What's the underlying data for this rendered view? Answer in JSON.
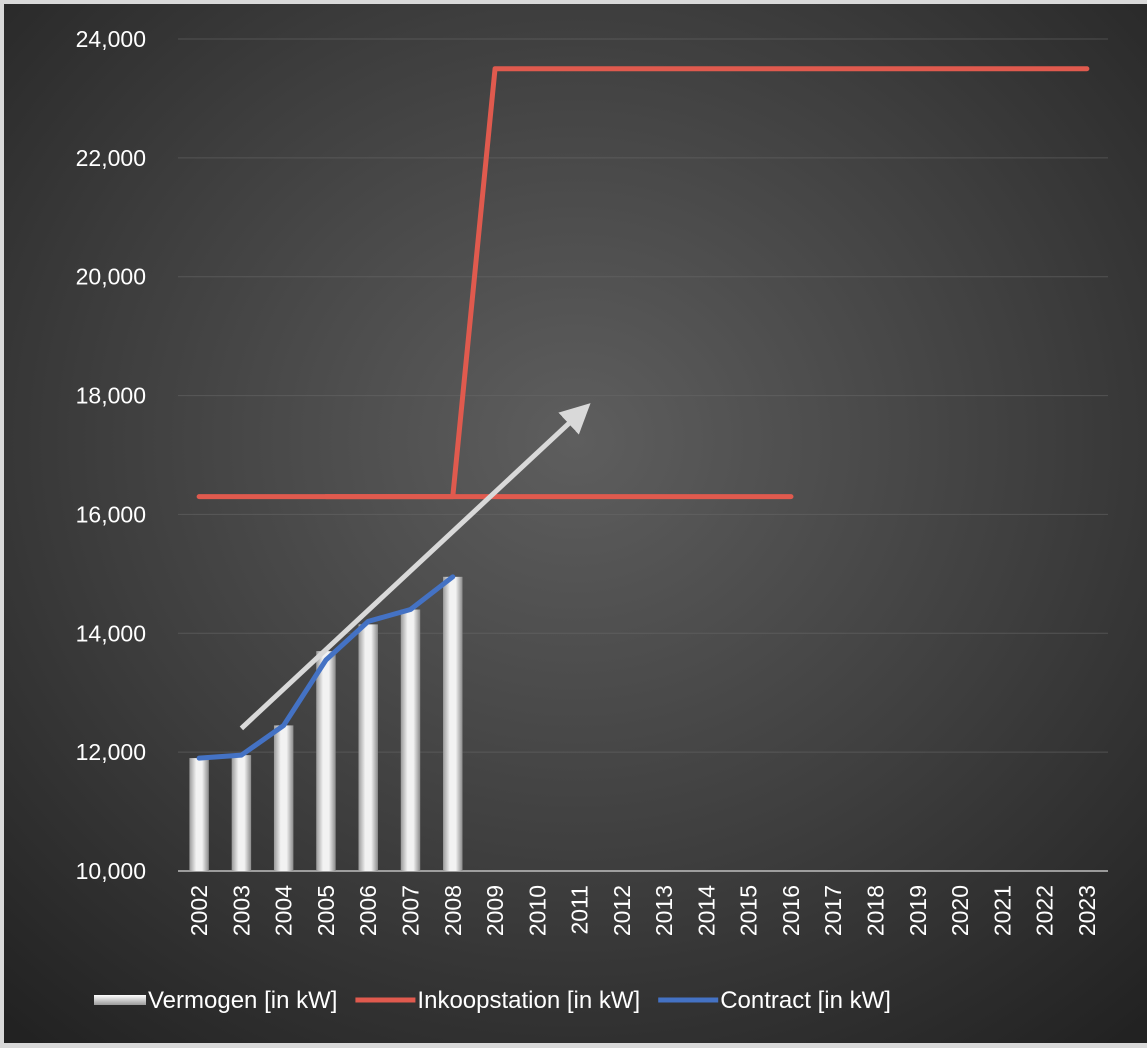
{
  "chart_data": {
    "type": "bar",
    "title": "",
    "xlabel": "",
    "ylabel": "",
    "categories": [
      "2002",
      "2003",
      "2004",
      "2005",
      "2006",
      "2007",
      "2008",
      "2009",
      "2010",
      "2011",
      "2012",
      "2013",
      "2014",
      "2015",
      "2016",
      "2017",
      "2018",
      "2019",
      "2020",
      "2021",
      "2022",
      "2023"
    ],
    "ylim": [
      10000,
      24000
    ],
    "yticks": [
      10000,
      12000,
      14000,
      16000,
      18000,
      20000,
      22000,
      24000
    ],
    "ytick_labels": [
      "10,000",
      "12,000",
      "14,000",
      "16,000",
      "18,000",
      "20,000",
      "22,000",
      "24,000"
    ],
    "grid": true,
    "legend_position": "bottom",
    "series": [
      {
        "name": "Vermogen [in kW]",
        "type": "bar",
        "color": "#e6e6e6",
        "values": [
          11900,
          11950,
          12450,
          13700,
          14150,
          14400,
          14950,
          null,
          null,
          null,
          null,
          null,
          null,
          null,
          null,
          null,
          null,
          null,
          null,
          null,
          null,
          null
        ]
      },
      {
        "name": "Inkoopstation [in kW]",
        "type": "line",
        "color": "#e05a4e",
        "values": [
          16300,
          16300,
          16300,
          16300,
          16300,
          16300,
          16300,
          23500,
          23500,
          23500,
          23500,
          23500,
          23500,
          23500,
          23500,
          23500,
          23500,
          23500,
          23500,
          23500,
          23500,
          23500
        ]
      },
      {
        "name": "Inkoopstation [in kW]",
        "type": "line",
        "color": "#e05a4e",
        "values": [
          null,
          null,
          null,
          16300,
          16300,
          16300,
          16300,
          16300,
          16300,
          16300,
          16300,
          16300,
          16300,
          16300,
          16300,
          null,
          null,
          null,
          null,
          null,
          null,
          null
        ]
      },
      {
        "name": "Contract [in kW]",
        "type": "line",
        "color": "#4472c4",
        "values": [
          11900,
          11950,
          12450,
          13550,
          14200,
          14400,
          14950,
          null,
          null,
          null,
          null,
          null,
          null,
          null,
          null,
          null,
          null,
          null,
          null,
          null,
          null,
          null
        ]
      }
    ],
    "annotations": [
      {
        "type": "trend-arrow",
        "color": "#d9d9d9",
        "from": [
          "2003",
          12400
        ],
        "to": [
          "2011",
          17700
        ]
      }
    ],
    "legend": [
      {
        "label": "Vermogen [in kW]",
        "marker": "bar",
        "color": "#e6e6e6"
      },
      {
        "label": "Inkoopstation [in kW]",
        "marker": "line",
        "color": "#e05a4e"
      },
      {
        "label": "Contract [in kW]",
        "marker": "line",
        "color": "#4472c4"
      }
    ]
  }
}
